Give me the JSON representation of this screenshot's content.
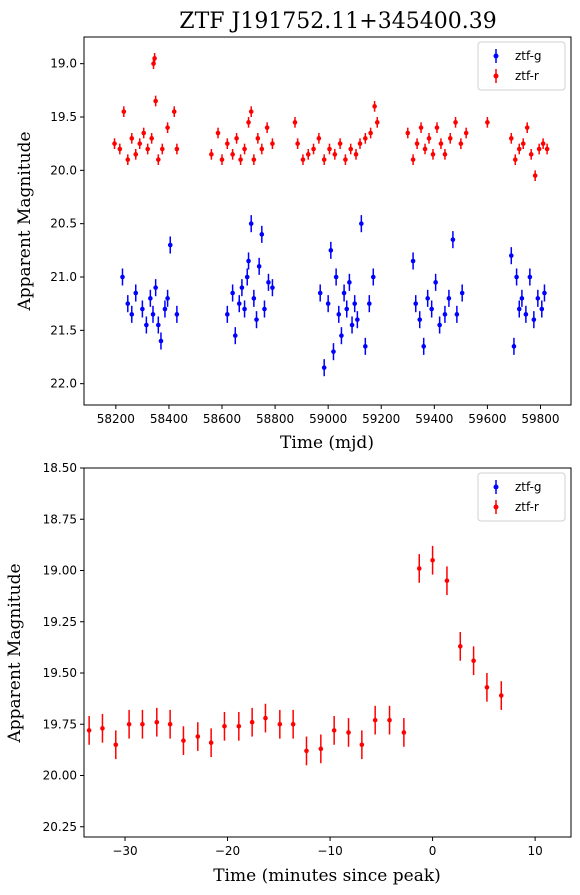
{
  "chart_data": [
    {
      "type": "scatter",
      "title": "ZTF J191752.11+345400.39",
      "xlabel": "Time (mjd)",
      "ylabel": "Apparent Magnitude",
      "xlim": [
        58080,
        59915
      ],
      "ylim": [
        22.2,
        18.75
      ],
      "y_inverted": true,
      "xticks": [
        "58200",
        "58400",
        "58600",
        "58800",
        "59000",
        "59200",
        "59400",
        "59600",
        "59800"
      ],
      "yticks": [
        "19.0",
        "19.5",
        "20.0",
        "20.5",
        "21.0",
        "21.5",
        "22.0"
      ],
      "legend": {
        "placement": "top-right",
        "entries": [
          "ztf-g",
          "ztf-r"
        ]
      },
      "series": [
        {
          "name": "ztf-g",
          "color": "#0000ff",
          "error": 0.08,
          "points": [
            [
              58225,
              21.0
            ],
            [
              58245,
              21.25
            ],
            [
              58260,
              21.35
            ],
            [
              58275,
              21.15
            ],
            [
              58300,
              21.3
            ],
            [
              58315,
              21.45
            ],
            [
              58330,
              21.2
            ],
            [
              58340,
              21.35
            ],
            [
              58350,
              21.1
            ],
            [
              58360,
              21.45
            ],
            [
              58370,
              21.6
            ],
            [
              58385,
              21.3
            ],
            [
              58395,
              21.2
            ],
            [
              58405,
              20.7
            ],
            [
              58430,
              21.35
            ],
            [
              58620,
              21.35
            ],
            [
              58640,
              21.15
            ],
            [
              58650,
              21.55
            ],
            [
              58665,
              21.25
            ],
            [
              58675,
              21.1
            ],
            [
              58685,
              21.3
            ],
            [
              58695,
              21.0
            ],
            [
              58700,
              20.85
            ],
            [
              58710,
              20.5
            ],
            [
              58720,
              21.2
            ],
            [
              58730,
              21.4
            ],
            [
              58740,
              20.9
            ],
            [
              58750,
              20.6
            ],
            [
              58760,
              21.3
            ],
            [
              58775,
              21.05
            ],
            [
              58790,
              21.1
            ],
            [
              58970,
              21.15
            ],
            [
              58985,
              21.85
            ],
            [
              59000,
              21.25
            ],
            [
              59010,
              20.75
            ],
            [
              59020,
              21.7
            ],
            [
              59030,
              21.0
            ],
            [
              59040,
              21.35
            ],
            [
              59050,
              21.55
            ],
            [
              59060,
              21.15
            ],
            [
              59070,
              21.3
            ],
            [
              59080,
              21.05
            ],
            [
              59090,
              21.45
            ],
            [
              59100,
              21.25
            ],
            [
              59110,
              21.4
            ],
            [
              59125,
              20.5
            ],
            [
              59140,
              21.65
            ],
            [
              59155,
              21.25
            ],
            [
              59170,
              21.0
            ],
            [
              59320,
              20.85
            ],
            [
              59330,
              21.25
            ],
            [
              59345,
              21.4
            ],
            [
              59360,
              21.65
            ],
            [
              59375,
              21.2
            ],
            [
              59390,
              21.3
            ],
            [
              59405,
              21.05
            ],
            [
              59420,
              21.45
            ],
            [
              59440,
              21.35
            ],
            [
              59455,
              21.2
            ],
            [
              59470,
              20.65
            ],
            [
              59485,
              21.35
            ],
            [
              59505,
              21.15
            ],
            [
              59690,
              20.8
            ],
            [
              59700,
              21.65
            ],
            [
              59710,
              21.0
            ],
            [
              59720,
              21.3
            ],
            [
              59730,
              21.2
            ],
            [
              59745,
              21.35
            ],
            [
              59760,
              21.0
            ],
            [
              59775,
              21.4
            ],
            [
              59790,
              21.2
            ],
            [
              59805,
              21.3
            ],
            [
              59815,
              21.15
            ]
          ]
        },
        {
          "name": "ztf-r",
          "color": "#ff0000",
          "error": 0.05,
          "points": [
            [
              58195,
              19.75
            ],
            [
              58215,
              19.8
            ],
            [
              58230,
              19.45
            ],
            [
              58245,
              19.9
            ],
            [
              58260,
              19.7
            ],
            [
              58275,
              19.85
            ],
            [
              58290,
              19.75
            ],
            [
              58305,
              19.65
            ],
            [
              58320,
              19.8
            ],
            [
              58335,
              19.7
            ],
            [
              58342,
              19.0
            ],
            [
              58346,
              18.95
            ],
            [
              58350,
              19.35
            ],
            [
              58360,
              19.9
            ],
            [
              58375,
              19.8
            ],
            [
              58395,
              19.6
            ],
            [
              58420,
              19.45
            ],
            [
              58430,
              19.8
            ],
            [
              58560,
              19.85
            ],
            [
              58585,
              19.65
            ],
            [
              58600,
              19.9
            ],
            [
              58620,
              19.75
            ],
            [
              58640,
              19.85
            ],
            [
              58655,
              19.7
            ],
            [
              58670,
              19.9
            ],
            [
              58685,
              19.8
            ],
            [
              58700,
              19.55
            ],
            [
              58710,
              19.45
            ],
            [
              58720,
              19.9
            ],
            [
              58735,
              19.7
            ],
            [
              58750,
              19.8
            ],
            [
              58770,
              19.6
            ],
            [
              58790,
              19.75
            ],
            [
              58875,
              19.55
            ],
            [
              58885,
              19.75
            ],
            [
              58905,
              19.9
            ],
            [
              58925,
              19.85
            ],
            [
              58945,
              19.8
            ],
            [
              58965,
              19.7
            ],
            [
              58985,
              19.9
            ],
            [
              59005,
              19.8
            ],
            [
              59025,
              19.85
            ],
            [
              59045,
              19.75
            ],
            [
              59065,
              19.9
            ],
            [
              59085,
              19.8
            ],
            [
              59105,
              19.85
            ],
            [
              59120,
              19.75
            ],
            [
              59140,
              19.7
            ],
            [
              59160,
              19.65
            ],
            [
              59175,
              19.4
            ],
            [
              59185,
              19.55
            ],
            [
              59300,
              19.65
            ],
            [
              59320,
              19.9
            ],
            [
              59335,
              19.75
            ],
            [
              59350,
              19.6
            ],
            [
              59365,
              19.8
            ],
            [
              59380,
              19.7
            ],
            [
              59395,
              19.85
            ],
            [
              59410,
              19.6
            ],
            [
              59425,
              19.75
            ],
            [
              59440,
              19.85
            ],
            [
              59460,
              19.7
            ],
            [
              59480,
              19.55
            ],
            [
              59500,
              19.75
            ],
            [
              59520,
              19.65
            ],
            [
              59600,
              19.55
            ],
            [
              59690,
              19.7
            ],
            [
              59705,
              19.9
            ],
            [
              59720,
              19.8
            ],
            [
              59735,
              19.75
            ],
            [
              59750,
              19.6
            ],
            [
              59765,
              19.85
            ],
            [
              59780,
              20.05
            ],
            [
              59795,
              19.8
            ],
            [
              59810,
              19.75
            ],
            [
              59825,
              19.8
            ]
          ]
        }
      ]
    },
    {
      "type": "scatter",
      "title": "",
      "xlabel": "Time (minutes since peak)",
      "ylabel": "Apparent Magnitude",
      "xlim": [
        -34,
        13.5
      ],
      "ylim": [
        20.3,
        18.5
      ],
      "y_inverted": true,
      "xticks": [
        "−30",
        "−20",
        "−10",
        "0",
        "10"
      ],
      "yticks": [
        "18.50",
        "18.75",
        "19.00",
        "19.25",
        "19.50",
        "19.75",
        "20.00",
        "20.25"
      ],
      "legend": {
        "placement": "top-right",
        "entries": [
          "ztf-g",
          "ztf-r"
        ]
      },
      "series": [
        {
          "name": "ztf-g",
          "color": "#0000ff",
          "points": []
        },
        {
          "name": "ztf-r",
          "color": "#ff0000",
          "error": 0.07,
          "points": [
            [
              -33.5,
              19.78
            ],
            [
              -32.2,
              19.77
            ],
            [
              -30.9,
              19.85
            ],
            [
              -29.6,
              19.75
            ],
            [
              -28.3,
              19.75
            ],
            [
              -26.9,
              19.74
            ],
            [
              -25.6,
              19.75
            ],
            [
              -24.3,
              19.83
            ],
            [
              -22.9,
              19.81
            ],
            [
              -21.6,
              19.84
            ],
            [
              -20.3,
              19.76
            ],
            [
              -18.9,
              19.76
            ],
            [
              -17.6,
              19.74
            ],
            [
              -16.3,
              19.72
            ],
            [
              -14.9,
              19.75
            ],
            [
              -13.6,
              19.75
            ],
            [
              -12.3,
              19.88
            ],
            [
              -10.9,
              19.87
            ],
            [
              -9.6,
              19.78
            ],
            [
              -8.2,
              19.79
            ],
            [
              -6.9,
              19.85
            ],
            [
              -5.6,
              19.73
            ],
            [
              -4.2,
              19.73
            ],
            [
              -2.8,
              19.79
            ],
            [
              -1.3,
              18.99
            ],
            [
              0.0,
              18.95
            ],
            [
              1.4,
              19.05
            ],
            [
              2.7,
              19.37
            ],
            [
              4.0,
              19.44
            ],
            [
              5.3,
              19.57
            ],
            [
              6.7,
              19.61
            ]
          ]
        }
      ]
    }
  ]
}
